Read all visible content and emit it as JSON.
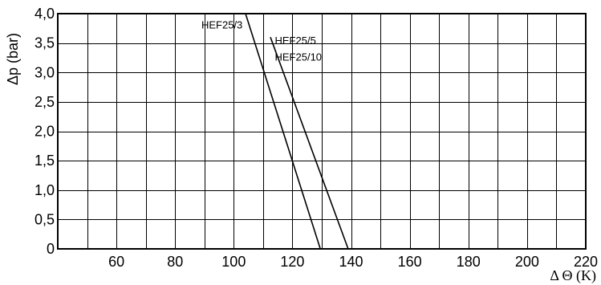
{
  "chart_data": {
    "type": "line",
    "title": "",
    "xlabel": "Δ Θ (K)",
    "ylabel": "Δp (bar)",
    "xlim": [
      40,
      220
    ],
    "ylim": [
      0,
      4.0
    ],
    "grid": true,
    "x_ticks": [
      60,
      80,
      100,
      120,
      140,
      160,
      180,
      200,
      220
    ],
    "x_tick_labels": [
      "60",
      "80",
      "100",
      "120",
      "140",
      "160",
      "180",
      "200",
      "220"
    ],
    "x_grid": [
      50,
      60,
      70,
      80,
      90,
      100,
      110,
      120,
      130,
      140,
      150,
      160,
      170,
      180,
      190,
      200,
      210
    ],
    "y_ticks": [
      0,
      0.5,
      1.0,
      1.5,
      2.0,
      2.5,
      3.0,
      3.5,
      4.0
    ],
    "y_tick_labels": [
      "0",
      "0,5",
      "1,0",
      "1,5",
      "2,0",
      "2,5",
      "3,0",
      "3,5",
      "4,0"
    ],
    "series": [
      {
        "name": "HEF25/3",
        "x": [
          104,
          129.5
        ],
        "y": [
          4.0,
          0
        ]
      },
      {
        "name": "HEF25/5 HEF25/10",
        "x": [
          112.5,
          139
        ],
        "y": [
          3.6,
          0
        ]
      }
    ],
    "annotations": [
      {
        "text": "HEF25/3",
        "at": [
          103,
          3.75
        ]
      },
      {
        "text": "HEF25/5",
        "at": [
          114,
          3.48
        ]
      },
      {
        "text": "HEF25/10",
        "at": [
          114,
          3.2
        ]
      }
    ]
  }
}
